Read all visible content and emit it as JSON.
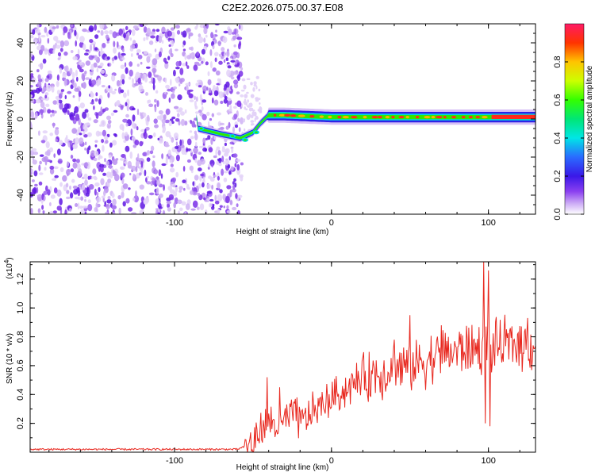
{
  "title": "C2E2.2026.075.00.37.E08",
  "chart_data": [
    {
      "type": "heatmap",
      "name": "spectrogram",
      "xlabel": "Height of straight line (km)",
      "ylabel": "Frequency (Hz)",
      "xlim": [
        -192,
        130
      ],
      "ylim": [
        -50,
        50
      ],
      "xticks": [
        -100,
        0,
        100
      ],
      "yticks": [
        -40,
        -20,
        0,
        20,
        40
      ],
      "colorbar": {
        "label": "Normalized spectral amplitude",
        "range": [
          0,
          1
        ],
        "ticks": [
          0.0,
          0.2,
          0.4,
          0.6,
          0.8
        ],
        "colors": [
          "#ffffff",
          "#b77ff0",
          "#6a1fe8",
          "#2f22e6",
          "#1f6fff",
          "#00e6e6",
          "#00e676",
          "#33ff00",
          "#ccff00",
          "#ffcc00",
          "#ff3300",
          "#ff1a66"
        ]
      },
      "description_points": [
        {
          "x": -85,
          "y": -5
        },
        {
          "x": -70,
          "y": -8
        },
        {
          "x": -58,
          "y": -10
        },
        {
          "x": -50,
          "y": -7
        },
        {
          "x": -45,
          "y": -2
        },
        {
          "x": -40,
          "y": 2
        },
        {
          "x": -30,
          "y": 2
        },
        {
          "x": 0,
          "y": 1
        },
        {
          "x": 50,
          "y": 1
        },
        {
          "x": 100,
          "y": 1
        },
        {
          "x": 130,
          "y": 1
        }
      ]
    },
    {
      "type": "line",
      "name": "snr",
      "xlabel": "Height of straight line (km)",
      "ylabel": "SNR (10 * v/v)",
      "yscale_label": "(x10",
      "yscale_exp": "4",
      "yscale_close": ")",
      "xlim": [
        -192,
        130
      ],
      "ylim": [
        0.0,
        1.32
      ],
      "xticks": [
        -100,
        0,
        100
      ],
      "yticks": [
        0.2,
        0.4,
        0.6,
        0.8,
        1.0,
        1.2
      ],
      "color": "#e8281f",
      "trend": [
        [
          -192,
          0.02
        ],
        [
          -60,
          0.02
        ],
        [
          -50,
          0.06
        ],
        [
          -45,
          0.15
        ],
        [
          -40,
          0.22
        ],
        [
          -35,
          0.18
        ],
        [
          -30,
          0.2
        ],
        [
          -25,
          0.26
        ],
        [
          -20,
          0.2
        ],
        [
          -15,
          0.25
        ],
        [
          -10,
          0.3
        ],
        [
          -5,
          0.33
        ],
        [
          0,
          0.38
        ],
        [
          10,
          0.44
        ],
        [
          20,
          0.52
        ],
        [
          30,
          0.55
        ],
        [
          40,
          0.58
        ],
        [
          50,
          0.6
        ],
        [
          60,
          0.64
        ],
        [
          70,
          0.68
        ],
        [
          80,
          0.7
        ],
        [
          90,
          0.72
        ],
        [
          100,
          0.72
        ],
        [
          110,
          0.74
        ],
        [
          120,
          0.76
        ],
        [
          130,
          0.74
        ]
      ],
      "spikes": [
        [
          -41,
          0.52
        ],
        [
          -33,
          0.45
        ],
        [
          -22,
          0.38
        ],
        [
          40,
          0.78
        ],
        [
          50,
          0.95
        ],
        [
          70,
          0.88
        ],
        [
          97,
          1.32
        ],
        [
          98,
          0.2
        ],
        [
          100,
          1.26
        ],
        [
          101,
          0.18
        ],
        [
          125,
          0.93
        ]
      ]
    }
  ]
}
